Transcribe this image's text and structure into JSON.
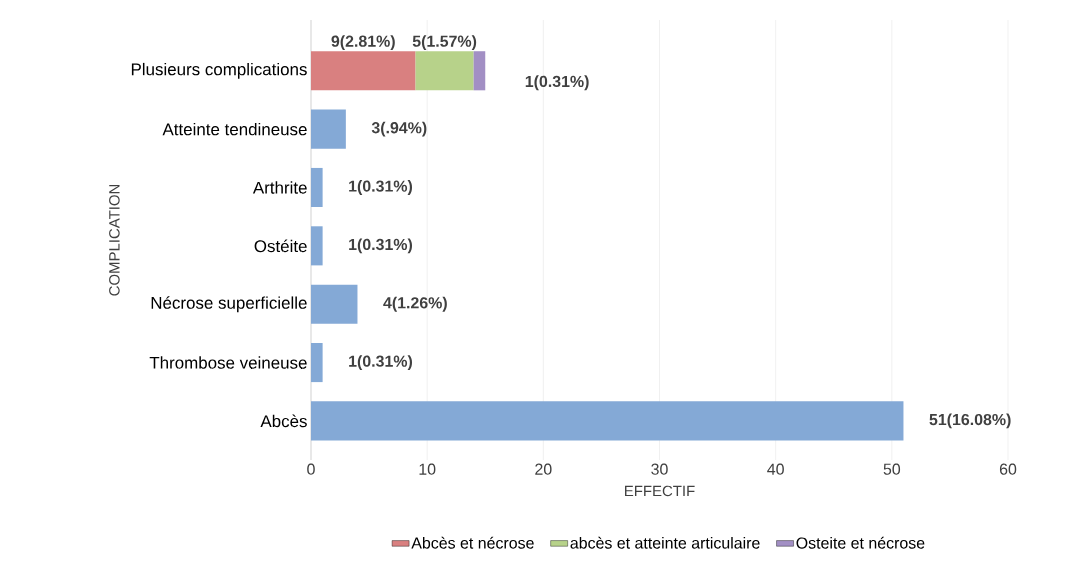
{
  "chart_data": {
    "type": "bar",
    "orientation": "horizontal",
    "stacked": true,
    "xlabel": "EFFECTIF",
    "ylabel": "COMPLICATION",
    "categories": [
      "Plusieurs complications",
      "Atteinte tendineuse",
      "Arthrite",
      "Ostéite",
      "Nécrose superficielle",
      "Thrombose veineuse",
      "Abcès"
    ],
    "series": [
      {
        "color": "#84a9d6",
        "values": [
          null,
          3,
          1,
          1,
          4,
          1,
          51
        ],
        "value_labels": [
          null,
          "3(.94%)",
          "1(0.31%)",
          "1(0.31%)",
          "4(1.26%)",
          "1(0.31%)",
          "51(16.08%)"
        ]
      },
      {
        "name": "Abcès et nécrose",
        "color": "#d98080",
        "values": [
          9,
          null,
          null,
          null,
          null,
          null,
          null
        ],
        "value_labels": [
          "9(2.81%)",
          null,
          null,
          null,
          null,
          null,
          null
        ]
      },
      {
        "name": "abcès et atteinte articulaire",
        "color": "#b7d28a",
        "values": [
          5,
          null,
          null,
          null,
          null,
          null,
          null
        ],
        "value_labels": [
          "5(1.57%)",
          null,
          null,
          null,
          null,
          null,
          null
        ]
      },
      {
        "name": "Osteite et nécrose",
        "color": "#a28fc4",
        "values": [
          1,
          null,
          null,
          null,
          null,
          null,
          null
        ],
        "value_labels": [
          "1(0.31%)",
          null,
          null,
          null,
          null,
          null,
          null
        ]
      }
    ],
    "xlim": [
      0,
      60
    ],
    "xticks": [
      0,
      10,
      20,
      30,
      40,
      50,
      60
    ],
    "grid": "x",
    "legend": "bottom"
  }
}
